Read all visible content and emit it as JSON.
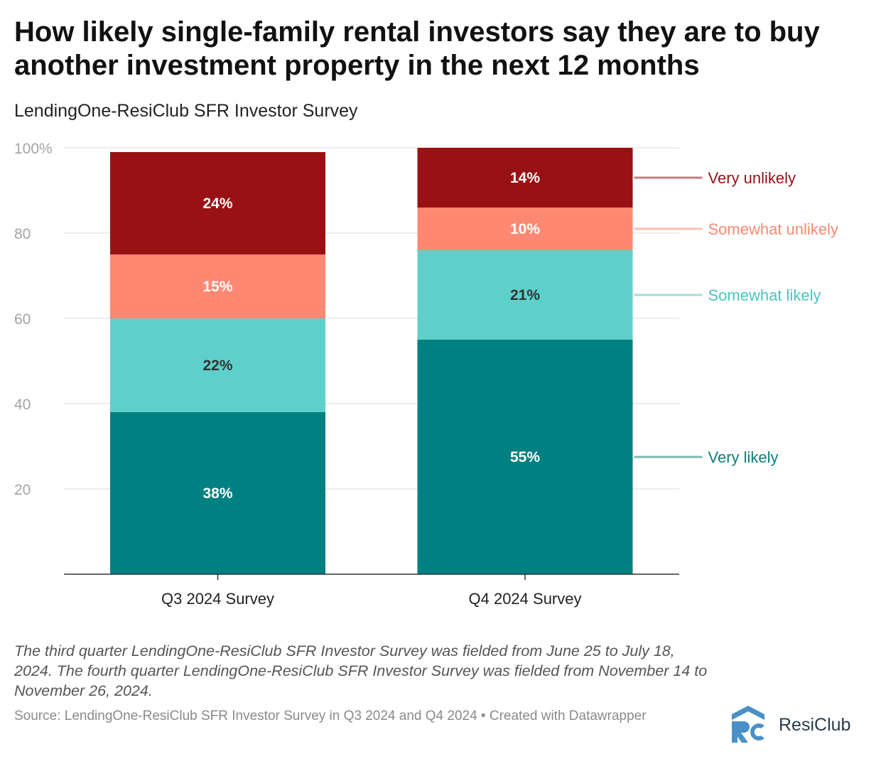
{
  "chart_data": {
    "type": "bar",
    "stacked": true,
    "title": "How likely single-family rental investors say they are to buy another investment property in the next 12 months",
    "subtitle": "LendingOne-ResiClub SFR Investor Survey",
    "categories": [
      "Q3 2024 Survey",
      "Q4 2024 Survey"
    ],
    "series": [
      {
        "name": "Very likely",
        "values": [
          38,
          55
        ],
        "labels": [
          "38%",
          "55%"
        ],
        "color": "#008080",
        "text_color": "#ffffff",
        "legend_color": "#0b7f7a"
      },
      {
        "name": "Somewhat likely",
        "values": [
          22,
          21
        ],
        "labels": [
          "22%",
          "21%"
        ],
        "color": "#5ed0ca",
        "text_color": "#333333",
        "legend_color": "#4cc4be"
      },
      {
        "name": "Somewhat unlikely",
        "values": [
          15,
          10
        ],
        "labels": [
          "15%",
          "10%"
        ],
        "color": "#fe8872",
        "text_color": "#ffffff",
        "legend_color": "#f58a74"
      },
      {
        "name": "Very unlikely",
        "values": [
          24,
          14
        ],
        "labels": [
          "24%",
          "14%"
        ],
        "color": "#991114",
        "text_color": "#ffffff",
        "legend_color": "#991114"
      }
    ],
    "ylim": [
      0,
      100
    ],
    "yticks": [
      20,
      40,
      60,
      80,
      100
    ],
    "ytick_labels": [
      "20",
      "40",
      "60",
      "80",
      "100%"
    ],
    "legend_position": "right",
    "grid": true
  },
  "footer": {
    "note": "The third quarter LendingOne-ResiClub SFR Investor Survey was fielded from June 25 to July 18, 2024. The fourth quarter LendingOne-ResiClub SFR Investor Survey was fielded from November 14 to November 26, 2024.",
    "source": "Source: LendingOne-ResiClub SFR Investor Survey in Q3 2024 and Q4 2024 • Created with Datawrapper",
    "logo_text": "ResiClub"
  },
  "colors": {
    "logo_accent": "#4a90c8",
    "logo_dark": "#2a3b4a"
  }
}
